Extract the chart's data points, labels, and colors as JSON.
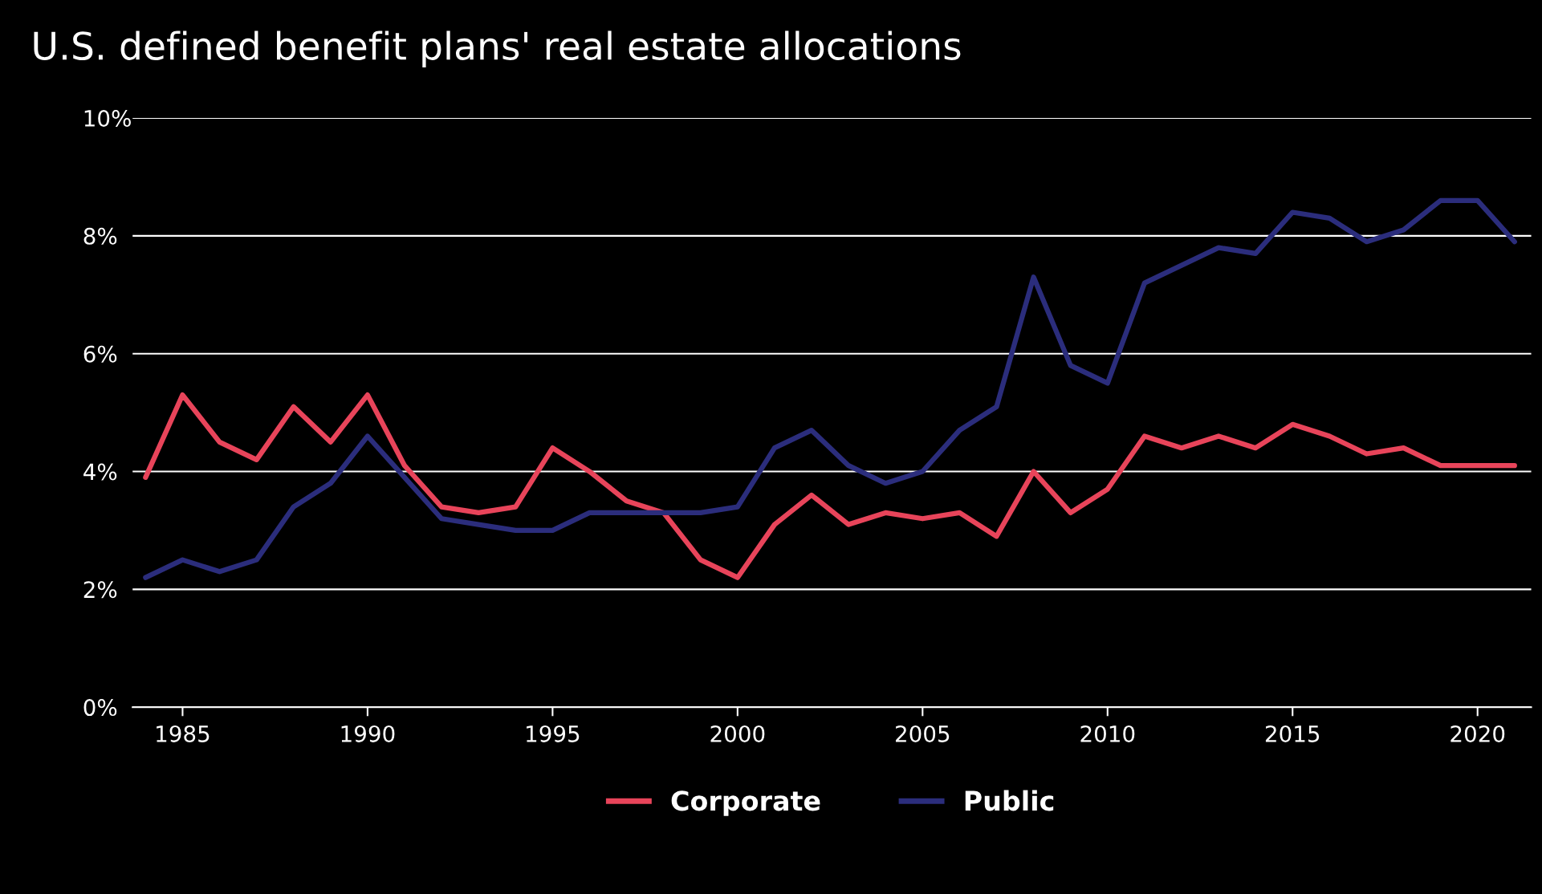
{
  "chart_data": {
    "type": "line",
    "title": "U.S. defined benefit plans' real estate allocations",
    "x": [
      1984,
      1985,
      1986,
      1987,
      1988,
      1989,
      1990,
      1991,
      1992,
      1993,
      1994,
      1995,
      1996,
      1997,
      1998,
      1999,
      2000,
      2001,
      2002,
      2003,
      2004,
      2005,
      2006,
      2007,
      2008,
      2009,
      2010,
      2011,
      2012,
      2013,
      2014,
      2015,
      2016,
      2017,
      2018,
      2019,
      2020,
      2021
    ],
    "series": [
      {
        "name": "Corporate",
        "color": "#e8445a",
        "values": [
          3.9,
          5.3,
          4.5,
          4.2,
          5.1,
          4.5,
          5.3,
          4.1,
          3.4,
          3.3,
          3.4,
          4.4,
          4.0,
          3.5,
          3.3,
          2.5,
          2.2,
          3.1,
          3.6,
          3.1,
          3.3,
          3.2,
          3.3,
          2.9,
          4.0,
          3.3,
          3.7,
          4.6,
          4.4,
          4.6,
          4.4,
          4.8,
          4.6,
          4.3,
          4.4,
          4.1,
          4.1,
          4.1
        ]
      },
      {
        "name": "Public",
        "color": "#2b2d7c",
        "values": [
          2.2,
          2.5,
          2.3,
          2.5,
          3.4,
          3.8,
          4.6,
          3.9,
          3.2,
          3.1,
          3.0,
          3.0,
          3.3,
          3.3,
          3.3,
          3.3,
          3.4,
          4.4,
          4.7,
          4.1,
          3.8,
          4.0,
          4.7,
          5.1,
          7.3,
          5.8,
          5.5,
          7.2,
          7.5,
          7.8,
          7.7,
          8.4,
          8.3,
          7.9,
          8.1,
          8.6,
          8.6,
          7.9
        ]
      }
    ],
    "xlim": [
      1983.65,
      2021.45
    ],
    "xticks": [
      1985,
      1990,
      1995,
      2000,
      2005,
      2010,
      2015,
      2020
    ],
    "ylim": [
      0,
      10
    ],
    "yticks": [
      {
        "value": 0,
        "label": "0%"
      },
      {
        "value": 2,
        "label": "2%"
      },
      {
        "value": 4,
        "label": "4%"
      },
      {
        "value": 6,
        "label": "6%"
      },
      {
        "value": 8,
        "label": "8%"
      },
      {
        "value": 10,
        "label": "10%"
      }
    ],
    "grid": "y",
    "legend": "bottom",
    "marker": "none",
    "line_style": "solid"
  }
}
